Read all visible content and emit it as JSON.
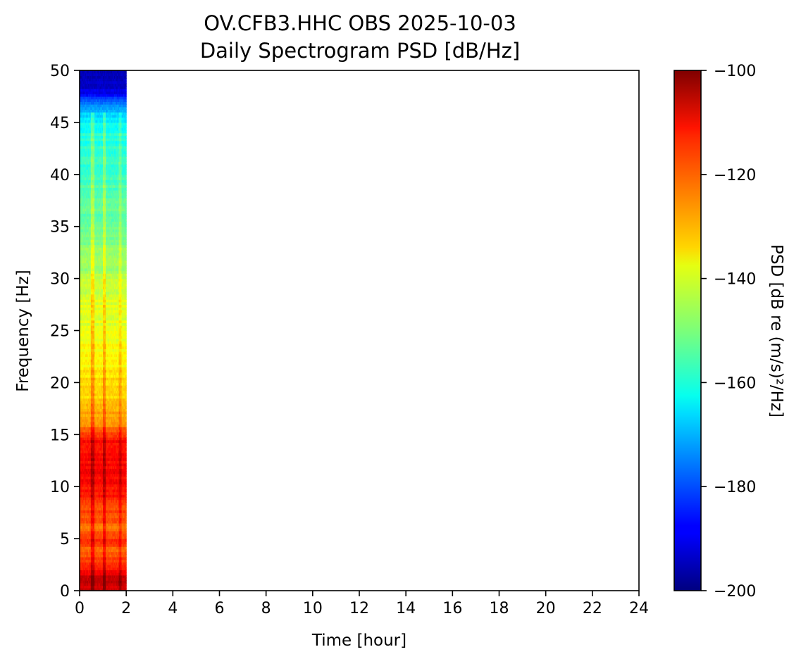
{
  "chart_data": {
    "type": "heatmap",
    "title": "OV.CFB3.HHC OBS 2025-10-03",
    "subtitle": "Daily Spectrogram PSD [dB/Hz]",
    "xlabel": "Time [hour]",
    "ylabel": "Frequency [Hz]",
    "xlim": [
      0,
      24
    ],
    "ylim": [
      0,
      50
    ],
    "xticks": [
      0,
      2,
      4,
      6,
      8,
      10,
      12,
      14,
      16,
      18,
      20,
      22,
      24
    ],
    "yticks": [
      0,
      5,
      10,
      15,
      20,
      25,
      30,
      35,
      40,
      45,
      50
    ],
    "colormap": "jet",
    "colorbar": {
      "label": "PSD [dB re (m/s)²/Hz]",
      "range": [
        -200,
        -100
      ],
      "ticks": [
        -100,
        -120,
        -140,
        -160,
        -180,
        -200
      ]
    },
    "data_time_range_hours": [
      0,
      2
    ],
    "frequency_profile": {
      "frequency_hz": [
        0,
        1.5,
        2,
        3,
        4,
        5,
        6,
        7,
        8,
        10,
        12,
        14,
        15,
        16,
        17,
        18,
        20,
        22,
        25,
        28,
        30,
        33,
        35,
        40,
        44,
        45,
        46,
        47,
        48,
        50
      ],
      "psd_db": [
        -108,
        -108,
        -116,
        -119,
        -122,
        -117,
        -124,
        -121,
        -119,
        -114,
        -112,
        -114,
        -116,
        -126,
        -129,
        -132,
        -134,
        -137,
        -140,
        -141,
        -145,
        -149,
        -152,
        -156,
        -160,
        -163,
        -168,
        -178,
        -190,
        -196
      ]
    },
    "bright_stripes_hours": [
      0.55,
      1.05,
      1.75
    ],
    "grid": false,
    "legend": "none"
  }
}
